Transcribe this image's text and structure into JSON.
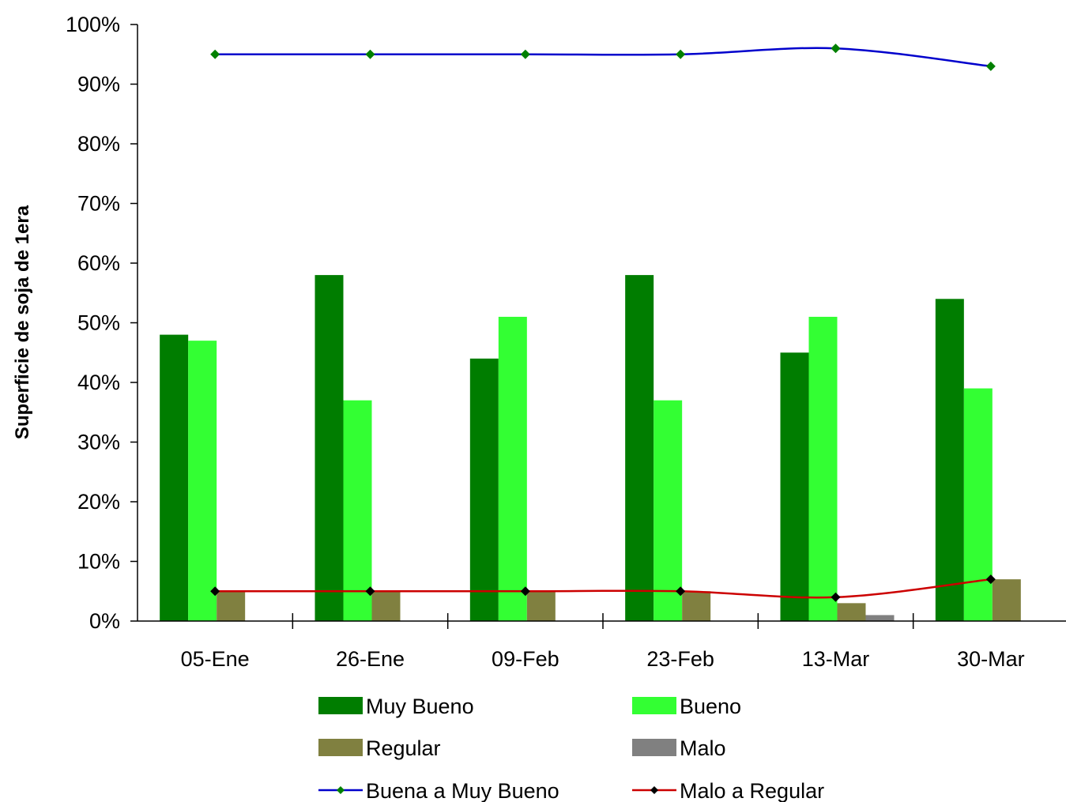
{
  "chart_data": {
    "type": "bar",
    "categories": [
      "05-Ene",
      "26-Ene",
      "09-Feb",
      "23-Feb",
      "13-Mar",
      "30-Mar"
    ],
    "ylabel": "Superficie de soja de 1era",
    "xlabel": "",
    "ylim": [
      0,
      100
    ],
    "yticks": [
      "0%",
      "10%",
      "20%",
      "30%",
      "40%",
      "50%",
      "60%",
      "70%",
      "80%",
      "90%",
      "100%"
    ],
    "grid": false,
    "legend_position": "bottom",
    "bar_series": [
      {
        "name": "Muy Bueno",
        "color": "#007D00",
        "values": [
          48,
          58,
          44,
          58,
          45,
          54
        ]
      },
      {
        "name": "Bueno",
        "color": "#33FF33",
        "values": [
          47,
          37,
          51,
          37,
          51,
          39
        ]
      },
      {
        "name": "Regular",
        "color": "#808040",
        "values": [
          5,
          5,
          5,
          5,
          3,
          7
        ]
      },
      {
        "name": "Malo",
        "color": "#808080",
        "values": [
          0,
          0,
          0,
          0,
          1,
          0
        ]
      }
    ],
    "line_series": [
      {
        "name": "Buena a Muy Bueno",
        "color": "#0000CC",
        "marker_color": "#008000",
        "values": [
          95,
          95,
          95,
          95,
          96,
          93
        ]
      },
      {
        "name": "Malo a Regular",
        "color": "#CC0000",
        "marker_color": "#000000",
        "values": [
          5,
          5,
          5,
          5,
          4,
          7
        ]
      }
    ]
  }
}
